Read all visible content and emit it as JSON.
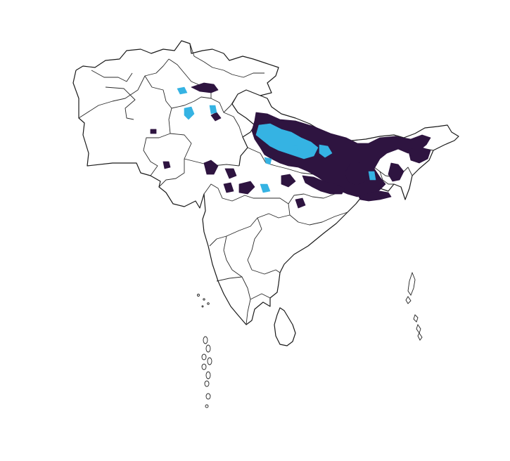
{
  "map": {
    "region": "South Asia",
    "background": "#ffffff",
    "border_color": "#1a1a1a",
    "classes": [
      {
        "id": "class-dark",
        "color": "#2e1440"
      },
      {
        "id": "class-light",
        "color": "#35b3e3"
      }
    ]
  }
}
